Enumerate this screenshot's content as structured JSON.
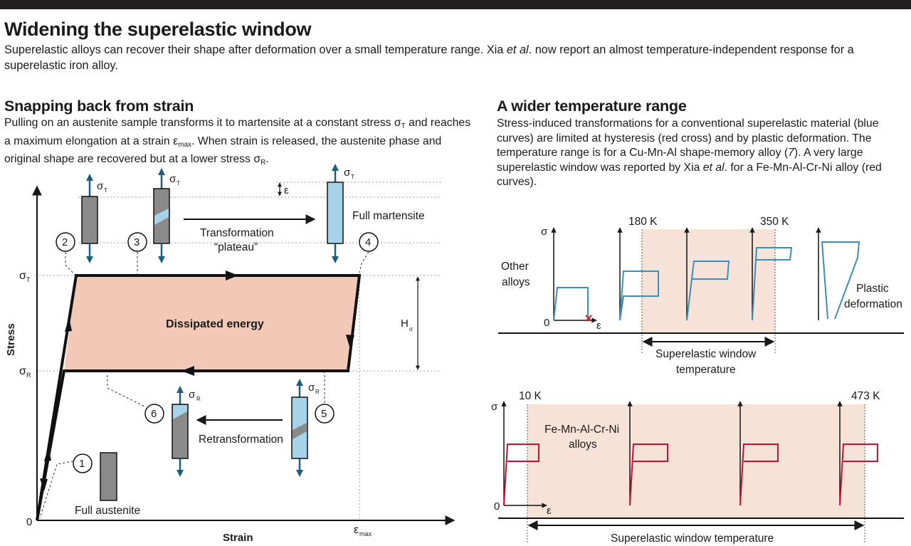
{
  "title": "Widening the superelastic window",
  "intro": {
    "text_1": "Superelastic alloys can recover their shape after deformation over a small temperature range. Xia ",
    "et_al": "et al",
    "text_2": ". now report an almost temperature-independent response for a superelastic iron alloy."
  },
  "left": {
    "title": "Snapping back from strain",
    "text_1": "Pulling on an austenite sample transforms it to martensite at a constant stress σ",
    "sub_T": "T",
    "text_2": " and reaches a maximum elongation at a strain ε",
    "sub_max": "max",
    "text_3": ". When strain is released, the austenite phase and original shape are recovered but at a lower stress σ",
    "sub_R": "R",
    "text_4": ".",
    "diagram": {
      "axis_y": "Stress",
      "axis_x": "Strain",
      "origin": "0",
      "sigma": "σ",
      "T": "T",
      "R": "R",
      "epsilon": "ε",
      "max": "max",
      "H": "H",
      "dissipated": "Dissipated energy",
      "transformation_1": "Transformation",
      "transformation_2": "“plateau”",
      "full_martensite": "Full martensite",
      "retransformation": "Retransformation",
      "full_austenite": "Full austenite",
      "step_labels": [
        "1",
        "2",
        "3",
        "4",
        "5",
        "6"
      ],
      "colors": {
        "loop_fill": "#f1c9b6",
        "martensite": "#a7d3ea",
        "austenite": "#8a8a8a",
        "arrow": "#1b5e7e"
      }
    }
  },
  "right": {
    "title": "A wider temperature range",
    "text_1": "Stress-induced transformations for a conventional superelastic material (blue curves) are limited at hysteresis (red cross) and by plastic deformation. The temperature range is for a Cu-Mn-Al shape-memory alloy (",
    "ref": "7",
    "text_2": "). A very large superelastic window was reported by Xia ",
    "et_al": "et al",
    "text_3": ". for a Fe-Mn-Al-Cr-Ni alloy (red curves).",
    "top_panel": {
      "temp_low": "180 K",
      "temp_high": "350 K",
      "label_1": "Other",
      "label_2": "alloys",
      "plastic_1": "Plastic",
      "plastic_2": "deformation",
      "window_1": "Superelastic window",
      "window_2": "temperature",
      "sigma": "σ",
      "epsilon": "ε",
      "zero": "0",
      "colors": {
        "band": "#f7e2d7",
        "curve": "#3a8fb7",
        "cross": "#cc1f1f"
      }
    },
    "bottom_panel": {
      "temp_low": "10 K",
      "temp_high": "473 K",
      "label_1": "Fe-Mn-Al-Cr-Ni",
      "label_2": "alloys",
      "window": "Superelastic window temperature",
      "sigma": "σ",
      "epsilon": "ε",
      "zero": "0",
      "colors": {
        "band": "#f7e2d7",
        "curve": "#c8102e"
      }
    }
  }
}
